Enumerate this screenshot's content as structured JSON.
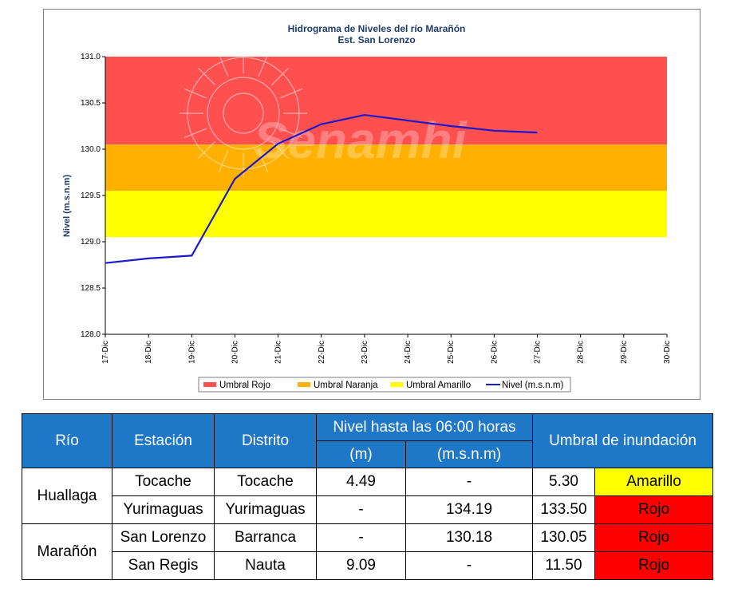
{
  "chart_data": {
    "type": "line",
    "title": "Hidrograma de Niveles del río Marañón",
    "subtitle": "Est. San Lorenzo",
    "ylabel": "Nivel (m.s.n.m)",
    "xlabel": "",
    "ylim": [
      128.0,
      131.0
    ],
    "yticks": [
      "128.0",
      "128.5",
      "129.0",
      "129.5",
      "130.0",
      "130.5",
      "131.0"
    ],
    "categories": [
      "17-Dic",
      "18-Dic",
      "19-Dic",
      "20-Dic",
      "21-Dic",
      "22-Dic",
      "23-Dic",
      "24-Dic",
      "25-Dic",
      "26-Dic",
      "27-Dic",
      "28-Dic",
      "29-Dic",
      "30-Dic"
    ],
    "bands": [
      {
        "name": "Umbral Rojo",
        "from": 130.05,
        "to": 131.0,
        "color": "#ff5050"
      },
      {
        "name": "Umbral Naranja",
        "from": 129.55,
        "to": 130.05,
        "color": "#ffb000"
      },
      {
        "name": "Umbral Amarillo",
        "from": 129.05,
        "to": 129.55,
        "color": "#ffff00"
      }
    ],
    "series": [
      {
        "name": "Nivel (m.s.n.m)",
        "color": "#1a1acc",
        "x": [
          0,
          1,
          2,
          3,
          4,
          5,
          6,
          7,
          8,
          9,
          10
        ],
        "values": [
          128.77,
          128.82,
          128.85,
          129.68,
          130.06,
          130.27,
          130.37,
          130.31,
          130.25,
          130.2,
          130.18
        ]
      }
    ],
    "watermark": "Senamhi",
    "legend_position": "bottom"
  },
  "table": {
    "headers": {
      "rio": "Río",
      "estacion": "Estación",
      "distrito": "Distrito",
      "nivel": "Nivel hasta las 06:00 horas",
      "m": "(m)",
      "msnm": "(m.s.n.m)",
      "umbral": "Umbral de inundación"
    },
    "rivers": [
      {
        "name": "Huallaga"
      },
      {
        "name": "Marañón"
      }
    ],
    "rows": [
      {
        "estacion": "Tocache",
        "distrito": "Tocache",
        "m": "4.49",
        "msnm": "-",
        "umbral": "5.30",
        "alerta": "Amarillo",
        "color": "#ffff00"
      },
      {
        "estacion": "Yurimaguas",
        "distrito": "Yurimaguas",
        "m": "-",
        "msnm": "134.19",
        "umbral": "133.50",
        "alerta": "Rojo",
        "color": "#ff0000"
      },
      {
        "estacion": "San Lorenzo",
        "distrito": "Barranca",
        "m": "-",
        "msnm": "130.18",
        "umbral": "130.05",
        "alerta": "Rojo",
        "color": "#ff0000"
      },
      {
        "estacion": "San Regis",
        "distrito": "Nauta",
        "m": "9.09",
        "msnm": "-",
        "umbral": "11.50",
        "alerta": "Rojo",
        "color": "#ff0000"
      }
    ]
  }
}
